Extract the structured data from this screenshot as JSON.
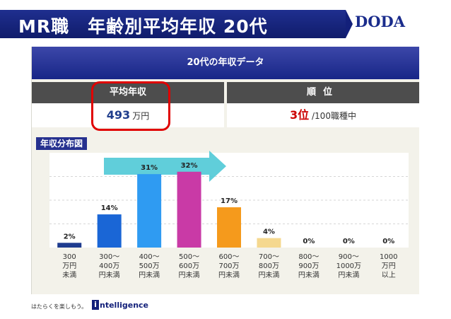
{
  "header": {
    "title": "MR職　年齢別平均年収 20代",
    "brand": "DODA"
  },
  "panel": {
    "heading": "20代の年収データ",
    "avg_label": "平均年収",
    "avg_value": "493",
    "avg_unit": "万円",
    "rank_label": "順位",
    "rank_value": "3位",
    "rank_suffix": " /100職種中"
  },
  "chart_data": {
    "type": "bar",
    "title": "年収分布図",
    "categories": [
      "300万円未満",
      "300～400万円未満",
      "400～500万円未満",
      "500～600万円未満",
      "600～700万円未満",
      "700～800万円未満",
      "800～900万円未満",
      "900～1000万円未満",
      "1000万円以上"
    ],
    "category_lines": [
      [
        "300",
        "万円",
        "未満"
      ],
      [
        "300～",
        "400万",
        "円未満"
      ],
      [
        "400～",
        "500万",
        "円未満"
      ],
      [
        "500～",
        "600万",
        "円未満"
      ],
      [
        "600～",
        "700万",
        "円未満"
      ],
      [
        "700～",
        "800万",
        "円未満"
      ],
      [
        "800～",
        "900万",
        "円未満"
      ],
      [
        "900～",
        "1000万",
        "円未満"
      ],
      [
        "1000",
        "万円",
        "以上"
      ]
    ],
    "values": [
      2,
      14,
      31,
      32,
      17,
      4,
      0,
      0,
      0
    ],
    "data_labels": [
      "2%",
      "14%",
      "31%",
      "32%",
      "17%",
      "4%",
      "0%",
      "0%",
      "0%"
    ],
    "ylim": [
      0,
      40
    ],
    "grid": true,
    "colors": [
      "#1f3c8f",
      "#1a66d6",
      "#2f9bf2",
      "#c93aa6",
      "#f59a1c",
      "#f5d88f",
      "#f3f2ea",
      "#f3f2ea",
      "#f3f2ea"
    ]
  },
  "footer": {
    "tagline": "はたらくを楽しもう。",
    "mark": "i",
    "logo": "ntelligence"
  },
  "colors": {
    "navy": "#13207a",
    "highlight": "#e00000",
    "arrow": "#4fc9d6"
  }
}
